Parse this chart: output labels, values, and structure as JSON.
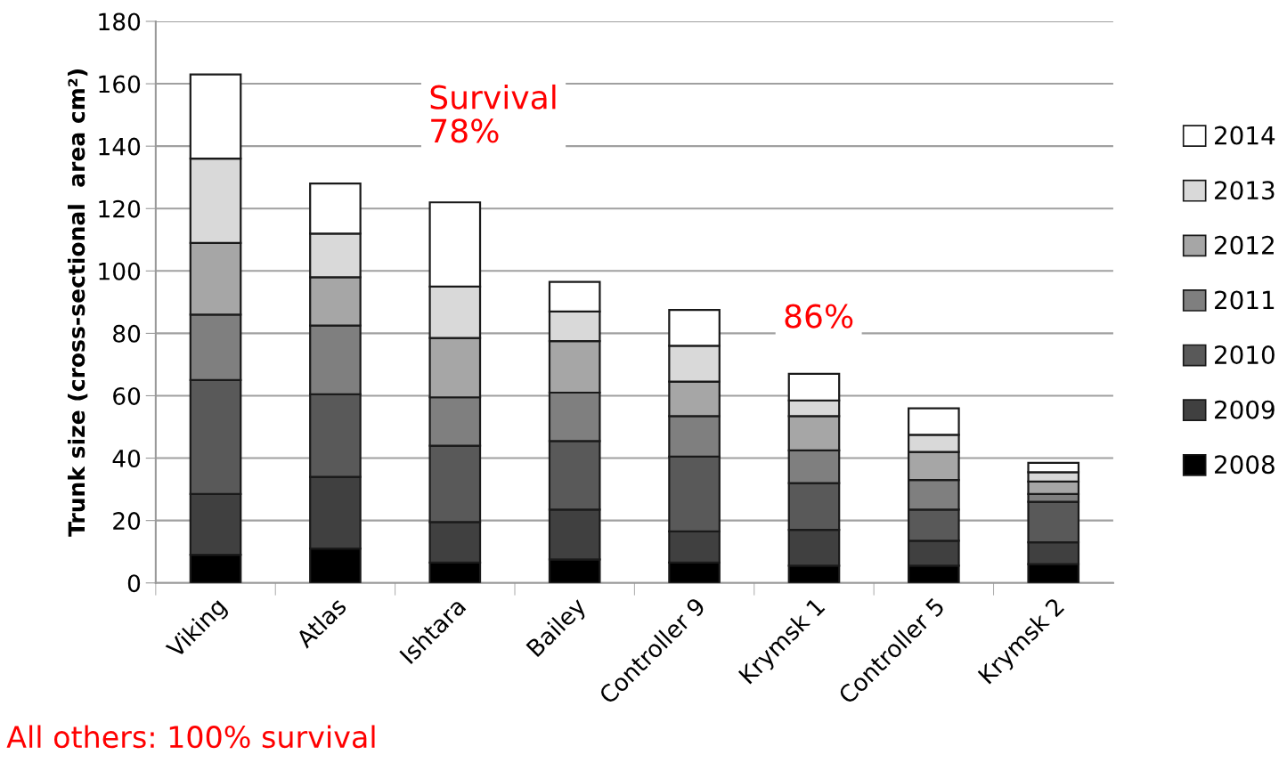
{
  "chart_data": {
    "type": "bar",
    "stacked": true,
    "ylabel": "Trunk size (cross-sectional  area cm²)",
    "categories": [
      "Viking",
      "Atlas",
      "Ishtara",
      "Bailey",
      "Controller 9",
      "Krymsk 1",
      "Controller 5",
      "Krymsk 2"
    ],
    "series": [
      {
        "name": "2008",
        "color": "#000000",
        "values": [
          9,
          11,
          6.5,
          7.5,
          6.5,
          5.5,
          5.5,
          6
        ]
      },
      {
        "name": "2009",
        "color": "#404040",
        "values": [
          19.5,
          23,
          13,
          16,
          10,
          11.5,
          8,
          7
        ]
      },
      {
        "name": "2010",
        "color": "#595959",
        "values": [
          36.5,
          26.5,
          24.5,
          22,
          24,
          15,
          10,
          13
        ]
      },
      {
        "name": "2011",
        "color": "#7f7f7f",
        "values": [
          21,
          22,
          15.5,
          15.5,
          13,
          10.5,
          9.5,
          2.5
        ]
      },
      {
        "name": "2012",
        "color": "#a6a6a6",
        "values": [
          23,
          15.5,
          19,
          16.5,
          11,
          11,
          9,
          4
        ]
      },
      {
        "name": "2013",
        "color": "#d9d9d9",
        "values": [
          27,
          14,
          16.5,
          9.5,
          11.5,
          5,
          5.5,
          3
        ]
      },
      {
        "name": "2014",
        "color": "#ffffff",
        "values": [
          27,
          16,
          27,
          9.5,
          11.5,
          8.5,
          8.5,
          3
        ]
      }
    ],
    "ylim": [
      0,
      180
    ],
    "yticks": [
      0,
      20,
      40,
      60,
      80,
      100,
      120,
      140,
      160,
      180
    ],
    "grid": "y",
    "legend": "right",
    "annotations": [
      "Survival\n78%",
      "86%",
      "All others: 100% survival"
    ]
  }
}
